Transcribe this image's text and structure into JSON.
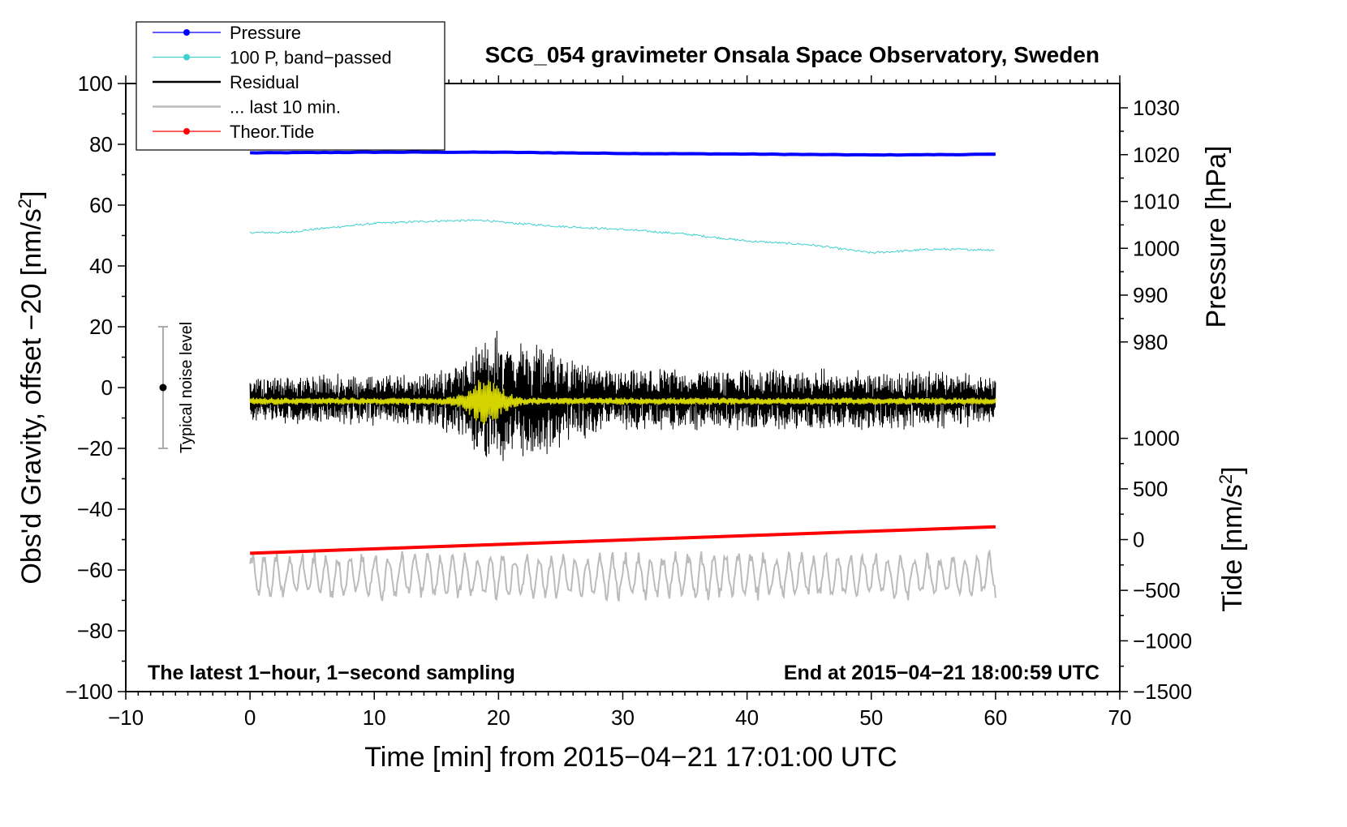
{
  "chart_data": {
    "type": "line",
    "title": "SCG_054 gravimeter Onsala Space Observatory, Sweden",
    "xlabel": "Time [min] from 2015−04−21 17:01:00 UTC",
    "ylabel": "Obs'd Gravity, offset −20 [nm/s",
    "ylabel_sup": "2",
    "ylabel_end": "]",
    "xlim": [
      -10,
      70
    ],
    "ylim": [
      -100,
      100
    ],
    "x_ticks": [
      {
        "value": -10,
        "label": "−10"
      },
      {
        "value": 0,
        "label": "0"
      },
      {
        "value": 10,
        "label": "10"
      },
      {
        "value": 20,
        "label": "20"
      },
      {
        "value": 30,
        "label": "30"
      },
      {
        "value": 40,
        "label": "40"
      },
      {
        "value": 50,
        "label": "50"
      },
      {
        "value": 60,
        "label": "60"
      },
      {
        "value": 70,
        "label": "70"
      }
    ],
    "y_ticks": [
      {
        "value": 100,
        "label": "100"
      },
      {
        "value": 80,
        "label": "80"
      },
      {
        "value": 60,
        "label": "60"
      },
      {
        "value": 40,
        "label": "40"
      },
      {
        "value": 20,
        "label": "20"
      },
      {
        "value": 0,
        "label": "0"
      },
      {
        "value": -20,
        "label": "−20"
      },
      {
        "value": -40,
        "label": "−40"
      },
      {
        "value": -60,
        "label": "−60"
      },
      {
        "value": -80,
        "label": "−80"
      },
      {
        "value": -100,
        "label": "−100"
      }
    ],
    "pressure_axis": {
      "label": "Pressure [hPa]",
      "ticks": [
        {
          "value": 1030,
          "label": "1030",
          "y": 92
        },
        {
          "value": 1020,
          "label": "1020",
          "y": 76.6
        },
        {
          "value": 1010,
          "label": "1010",
          "y": 61.2
        },
        {
          "value": 1000,
          "label": "1000",
          "y": 45.8
        },
        {
          "value": 990,
          "label": "990",
          "y": 30.4
        },
        {
          "value": 980,
          "label": "980",
          "y": 15
        }
      ]
    },
    "tide_axis": {
      "label": "Tide [nm/s",
      "label_sup": "2",
      "label_end": "]",
      "ticks": [
        {
          "value": 1000,
          "label": "1000",
          "y": -16.7
        },
        {
          "value": 500,
          "label": "500",
          "y": -33.3
        },
        {
          "value": 0,
          "label": "0",
          "y": -50
        },
        {
          "value": -500,
          "label": "−500",
          "y": -66.7
        },
        {
          "value": -1000,
          "label": "−1000",
          "y": -83.3
        },
        {
          "value": -1500,
          "label": "−1500",
          "y": -100
        }
      ]
    },
    "legend": {
      "position": "top-left",
      "items": [
        {
          "label": "Pressure",
          "color": "#0000ff",
          "marker": true
        },
        {
          "label": "100 P, band−passed",
          "color": "#40d0d0",
          "marker": true
        },
        {
          "label": "Residual",
          "color": "#000000",
          "marker": false
        },
        {
          "label": "... last 10 min.",
          "color": "#bbbbbb",
          "marker": false
        },
        {
          "label": "Theor.Tide",
          "color": "#ff0000",
          "marker": true
        }
      ]
    },
    "series": [
      {
        "name": "Pressure",
        "color": "#0000ff",
        "x": [
          0,
          10,
          20,
          30,
          40,
          50,
          60
        ],
        "y": [
          77.2,
          77.4,
          77.4,
          77.0,
          76.8,
          76.5,
          76.7
        ]
      },
      {
        "name": "100 P, band-passed",
        "color": "#40d0d0",
        "x": [
          0,
          3,
          5,
          10,
          15,
          19,
          20,
          25,
          30,
          35,
          40,
          45,
          50,
          55,
          60
        ],
        "y": [
          51,
          51,
          52,
          54,
          54.8,
          55,
          54.4,
          53,
          52,
          50.5,
          48.2,
          47,
          44.3,
          45.5,
          45.3
        ]
      },
      {
        "name": "Residual",
        "color": "#000000",
        "baseline": -4,
        "x": [
          0,
          15,
          18,
          20,
          22,
          25,
          28,
          35,
          45,
          60
        ],
        "amplitude": [
          7,
          8,
          15,
          20,
          18,
          14,
          9,
          9,
          9,
          8
        ]
      },
      {
        "name": "... last 10 min.",
        "color": "#bbbbbb",
        "x": [
          0,
          30,
          60
        ],
        "y": [
          -62,
          -62,
          -62
        ],
        "amplitude": [
          6,
          6,
          6
        ]
      },
      {
        "name": "Theor.Tide",
        "color": "#ff0000",
        "x": [
          0,
          60
        ],
        "y": [
          -54.5,
          -45.8
        ]
      }
    ],
    "annotations": {
      "noise_label": "Typical noise level",
      "noise_range": [
        -20,
        20
      ],
      "noise_x": -7,
      "bottom_left": "The latest 1−hour, 1−second sampling",
      "bottom_right": "End at 2015−04−21 18:00:59 UTC"
    }
  }
}
